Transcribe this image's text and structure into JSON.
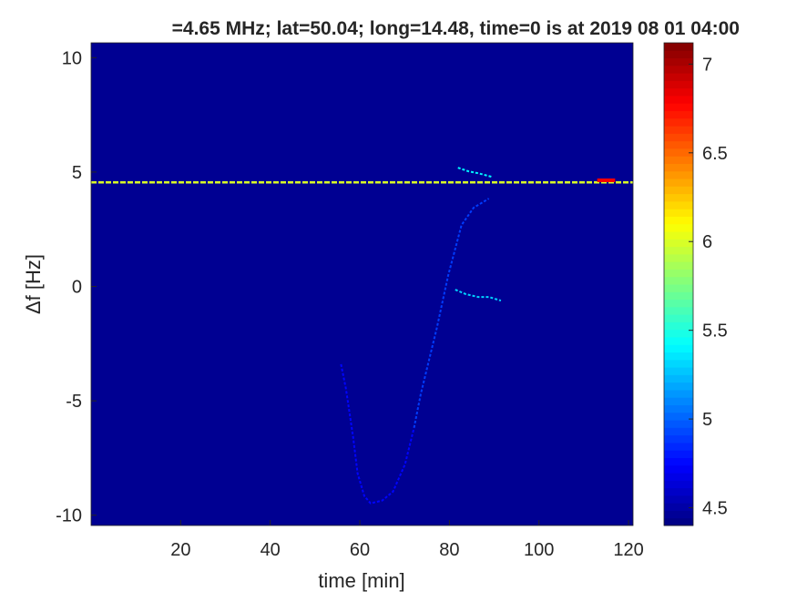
{
  "chart_data": {
    "type": "heatmap",
    "title": "=4.65 MHz;  lat=50.04; long=14.48, time=0 is at 2019 08 01 04:00",
    "xlabel": "time [min]",
    "ylabel": "Δf [Hz]",
    "xlim": [
      0,
      121
    ],
    "ylim": [
      -10.45,
      10.65
    ],
    "xticks": [
      20,
      40,
      60,
      80,
      100,
      120
    ],
    "yticks": [
      -10,
      -5,
      0,
      5,
      10
    ],
    "colormap": "jet",
    "clim": [
      4.4,
      7.12
    ],
    "colorbar_ticks": [
      4.5,
      5,
      5.5,
      6,
      6.5,
      7
    ],
    "background_value": 4.45,
    "features": [
      {
        "kind": "carrier",
        "df": 4.55,
        "t_range": [
          0,
          121
        ],
        "value": 6.0
      },
      {
        "kind": "blob",
        "df": 4.6,
        "t_range": [
          113,
          117
        ],
        "value": 6.8
      },
      {
        "kind": "trace",
        "value": 5.4,
        "points": [
          [
            81.9,
            5.19
          ],
          [
            84.3,
            5.03
          ],
          [
            86.4,
            4.95
          ],
          [
            89.5,
            4.79
          ]
        ]
      },
      {
        "kind": "trace",
        "value": 5.3,
        "points": [
          [
            81.3,
            -0.14
          ],
          [
            83.7,
            -0.34
          ],
          [
            86.4,
            -0.46
          ],
          [
            88.8,
            -0.46
          ],
          [
            91.5,
            -0.62
          ]
        ]
      },
      {
        "kind": "trace",
        "value": 4.9,
        "points": [
          [
            72.1,
            -6.18
          ],
          [
            73.6,
            -4.71
          ],
          [
            77.2,
            -1.81
          ],
          [
            79.7,
            0.46
          ],
          [
            82.7,
            2.68
          ],
          [
            85.4,
            3.44
          ],
          [
            88.8,
            3.84
          ]
        ]
      },
      {
        "kind": "trace",
        "value": 4.75,
        "points": [
          [
            55.8,
            -3.4
          ],
          [
            56.9,
            -4.47
          ],
          [
            58.5,
            -6.58
          ],
          [
            59.5,
            -8.17
          ],
          [
            61,
            -9.16
          ],
          [
            62.4,
            -9.48
          ],
          [
            65,
            -9.36
          ],
          [
            67.4,
            -8.97
          ],
          [
            70.1,
            -7.77
          ],
          [
            72.1,
            -6.18
          ]
        ]
      }
    ]
  }
}
